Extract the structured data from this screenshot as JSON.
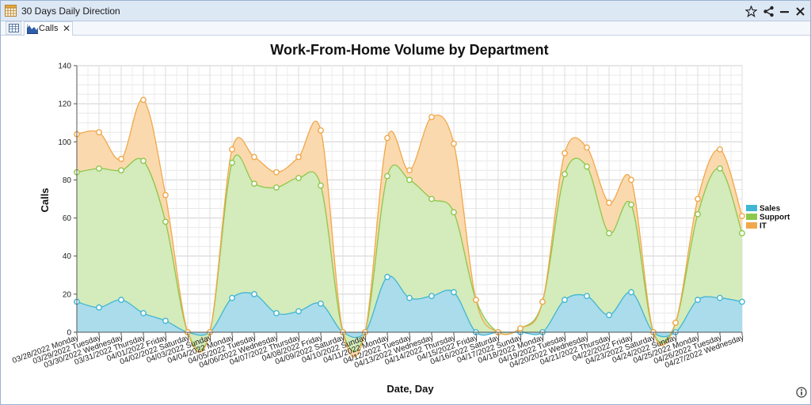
{
  "window": {
    "title": "30 Days Daily Direction",
    "tab_label": "Calls",
    "tab_close": "✕",
    "icons": [
      "calendar-grid-icon",
      "star-icon",
      "share-icon",
      "minimize-icon",
      "close-icon",
      "table-icon",
      "area-chart-icon",
      "info-icon"
    ]
  },
  "colors": {
    "sales": "#41b6d2",
    "sales_fill": "#aadceb",
    "support": "#8cc84b",
    "support_fill": "#d4ebbb",
    "it": "#f0a84b",
    "it_fill": "#fbd9ae",
    "titlebar": "#dde8f5"
  },
  "chart_data": {
    "type": "area",
    "stacked": true,
    "title": "Work-From-Home Volume by Department",
    "xlabel": "Date, Day",
    "ylabel": "Calls",
    "ylim": [
      0,
      140
    ],
    "yticks": [
      0,
      20,
      40,
      60,
      80,
      100,
      120,
      140
    ],
    "grid": true,
    "legend_position": "right",
    "categories": [
      "03/28/2022 Monday",
      "03/29/2022 Tuesday",
      "03/30/2022 Wednesday",
      "03/31/2022 Thursday",
      "04/01/2022 Friday",
      "04/02/2022 Saturday",
      "04/03/2022 Sunday",
      "04/04/2022 Monday",
      "04/05/2022 Tuesday",
      "04/06/2022 Wednesday",
      "04/07/2022 Thursday",
      "04/08/2022 Friday",
      "04/09/2022 Saturday",
      "04/10/2022 Sunday",
      "04/11/2022 Monday",
      "04/12/2022 Tuesday",
      "04/13/2022 Wednesday",
      "04/14/2022 Thursday",
      "04/15/2022 Friday",
      "04/16/2022 Saturday",
      "04/17/2022 Sunday",
      "04/18/2022 Monday",
      "04/19/2022 Tuesday",
      "04/20/2022 Wednesday",
      "04/21/2022 Thursday",
      "04/22/2022 Friday",
      "04/23/2022 Saturday",
      "04/24/2022 Sunday",
      "04/25/2022 Monday",
      "04/26/2022 Tuesday",
      "04/27/2022 Wednesday"
    ],
    "series": [
      {
        "name": "Sales",
        "values": [
          16,
          13,
          17,
          10,
          6,
          0,
          0,
          18,
          20,
          10,
          11,
          15,
          0,
          0,
          29,
          18,
          19,
          21,
          0,
          0,
          0,
          0,
          17,
          19,
          9,
          21,
          0,
          0,
          17,
          18,
          16
        ]
      },
      {
        "name": "Support",
        "values": [
          68,
          73,
          68,
          80,
          52,
          0,
          0,
          71,
          58,
          66,
          70,
          62,
          0,
          0,
          53,
          62,
          51,
          42,
          17,
          0,
          2,
          16,
          66,
          68,
          43,
          46,
          0,
          5,
          45,
          68,
          36
        ]
      },
      {
        "name": "IT",
        "values": [
          20,
          19,
          6,
          32,
          14,
          0,
          0,
          7,
          14,
          8,
          11,
          29,
          0,
          0,
          20,
          5,
          43,
          36,
          0,
          0,
          0,
          0,
          11,
          10,
          16,
          13,
          0,
          0,
          8,
          10,
          9
        ]
      }
    ]
  }
}
